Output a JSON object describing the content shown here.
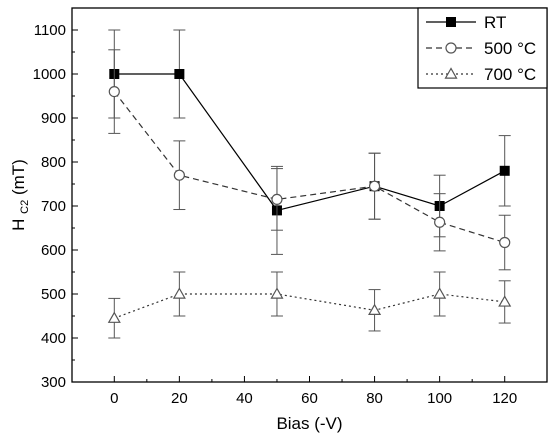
{
  "chart_data": {
    "type": "line",
    "xlabel": "Bias (-V)",
    "ylabel_main": "H",
    "ylabel_sub": "C2",
    "ylabel_unit": " (mT)",
    "xlim": [
      -13,
      133
    ],
    "ylim": [
      300,
      1150
    ],
    "xticks": [
      0,
      20,
      40,
      60,
      80,
      100,
      120
    ],
    "yticks": [
      300,
      400,
      500,
      600,
      700,
      800,
      900,
      1000,
      1100
    ],
    "grid": false,
    "legend_position": "top-right",
    "series": [
      {
        "name": "RT",
        "marker": "square-filled",
        "line": "solid",
        "x": [
          0,
          20,
          50,
          80,
          100,
          120
        ],
        "y": [
          1000,
          1000,
          690,
          745,
          700,
          780
        ],
        "err": [
          100,
          100,
          100,
          75,
          70,
          80
        ]
      },
      {
        "name": "500 °C",
        "marker": "circle-open",
        "line": "dashed",
        "x": [
          0,
          20,
          50,
          80,
          100,
          120
        ],
        "y": [
          960,
          770,
          715,
          745,
          663,
          617
        ],
        "err": [
          95,
          78,
          70,
          75,
          65,
          62
        ]
      },
      {
        "name": "700 °C",
        "marker": "triangle-open",
        "line": "dotted",
        "x": [
          0,
          20,
          50,
          80,
          100,
          120
        ],
        "y": [
          445,
          500,
          500,
          463,
          500,
          482
        ],
        "err": [
          45,
          50,
          50,
          47,
          50,
          48
        ]
      }
    ]
  }
}
